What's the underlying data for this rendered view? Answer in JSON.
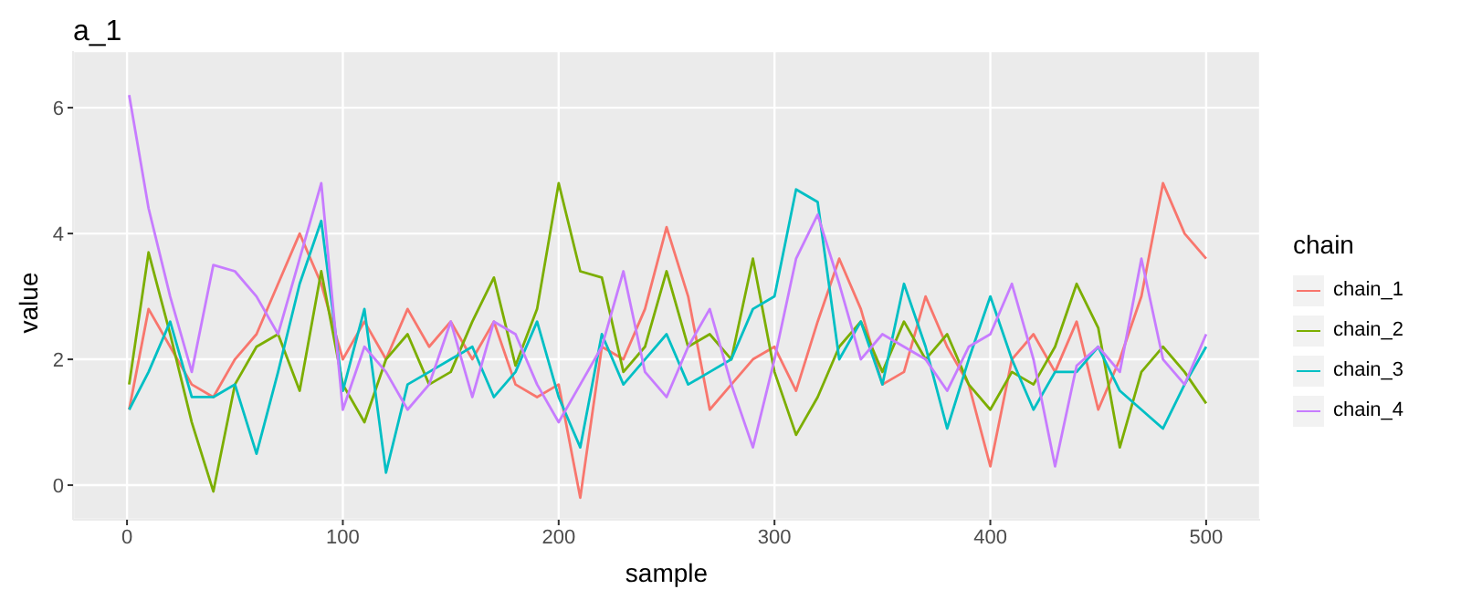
{
  "chart_data": {
    "type": "line",
    "title": "a_1",
    "xlabel": "sample",
    "ylabel": "value",
    "legend_title": "chain",
    "x": [
      1,
      10,
      20,
      30,
      40,
      50,
      60,
      70,
      80,
      90,
      100,
      110,
      120,
      130,
      140,
      150,
      160,
      170,
      180,
      190,
      200,
      210,
      220,
      230,
      240,
      250,
      260,
      270,
      280,
      290,
      300,
      310,
      320,
      330,
      340,
      350,
      360,
      370,
      380,
      390,
      400,
      410,
      420,
      430,
      440,
      450,
      460,
      470,
      480,
      490,
      500
    ],
    "series": [
      {
        "name": "chain_1",
        "color": "#f8766d",
        "values": [
          1.2,
          2.8,
          2.2,
          1.6,
          1.4,
          2.0,
          2.4,
          3.2,
          4.0,
          3.2,
          2.0,
          2.6,
          2.0,
          2.8,
          2.2,
          2.6,
          2.0,
          2.6,
          1.6,
          1.4,
          1.6,
          -0.2,
          2.2,
          2.0,
          2.8,
          4.1,
          3.0,
          1.2,
          1.6,
          2.0,
          2.2,
          1.5,
          2.6,
          3.6,
          2.8,
          1.6,
          1.8,
          3.0,
          2.2,
          1.6,
          0.3,
          2.0,
          2.4,
          1.8,
          2.6,
          1.2,
          2.0,
          3.0,
          4.8,
          4.0,
          3.6
        ]
      },
      {
        "name": "chain_2",
        "color": "#7cae00",
        "values": [
          1.6,
          3.7,
          2.4,
          1.0,
          -0.1,
          1.6,
          2.2,
          2.4,
          1.5,
          3.4,
          1.6,
          1.0,
          2.0,
          2.4,
          1.6,
          1.8,
          2.6,
          3.3,
          1.9,
          2.8,
          4.8,
          3.4,
          3.3,
          1.8,
          2.2,
          3.4,
          2.2,
          2.4,
          2.0,
          3.6,
          1.8,
          0.8,
          1.4,
          2.2,
          2.6,
          1.8,
          2.6,
          2.0,
          2.4,
          1.6,
          1.2,
          1.8,
          1.6,
          2.2,
          3.2,
          2.5,
          0.6,
          1.8,
          2.2,
          1.8,
          1.3
        ]
      },
      {
        "name": "chain_3",
        "color": "#00bfc4",
        "values": [
          1.2,
          1.8,
          2.6,
          1.4,
          1.4,
          1.6,
          0.5,
          1.8,
          3.2,
          4.2,
          1.5,
          2.8,
          0.2,
          1.6,
          1.8,
          2.0,
          2.2,
          1.4,
          1.8,
          2.6,
          1.4,
          0.6,
          2.4,
          1.6,
          2.0,
          2.4,
          1.6,
          1.8,
          2.0,
          2.8,
          3.0,
          4.7,
          4.5,
          2.0,
          2.6,
          1.6,
          3.2,
          2.2,
          0.9,
          2.0,
          3.0,
          2.0,
          1.2,
          1.8,
          1.8,
          2.2,
          1.5,
          1.2,
          0.9,
          1.6,
          2.2
        ]
      },
      {
        "name": "chain_4",
        "color": "#c77cff",
        "values": [
          6.2,
          4.4,
          3.0,
          1.8,
          3.5,
          3.4,
          3.0,
          2.4,
          3.6,
          4.8,
          1.2,
          2.2,
          1.8,
          1.2,
          1.6,
          2.6,
          1.4,
          2.6,
          2.4,
          1.6,
          1.0,
          1.6,
          2.2,
          3.4,
          1.8,
          1.4,
          2.2,
          2.8,
          1.6,
          0.6,
          2.0,
          3.6,
          4.3,
          3.2,
          2.0,
          2.4,
          2.2,
          2.0,
          1.5,
          2.2,
          2.4,
          3.2,
          2.0,
          0.3,
          1.9,
          2.2,
          1.8,
          3.6,
          2.0,
          1.6,
          2.4
        ]
      }
    ],
    "xlim": [
      -25,
      525
    ],
    "xticks": [
      0,
      100,
      200,
      300,
      400,
      500
    ],
    "ylim": [
      -0.55,
      6.9
    ],
    "yticks": [
      0,
      2,
      4,
      6
    ],
    "grid": true,
    "legend": "right",
    "line_style": "solid"
  }
}
